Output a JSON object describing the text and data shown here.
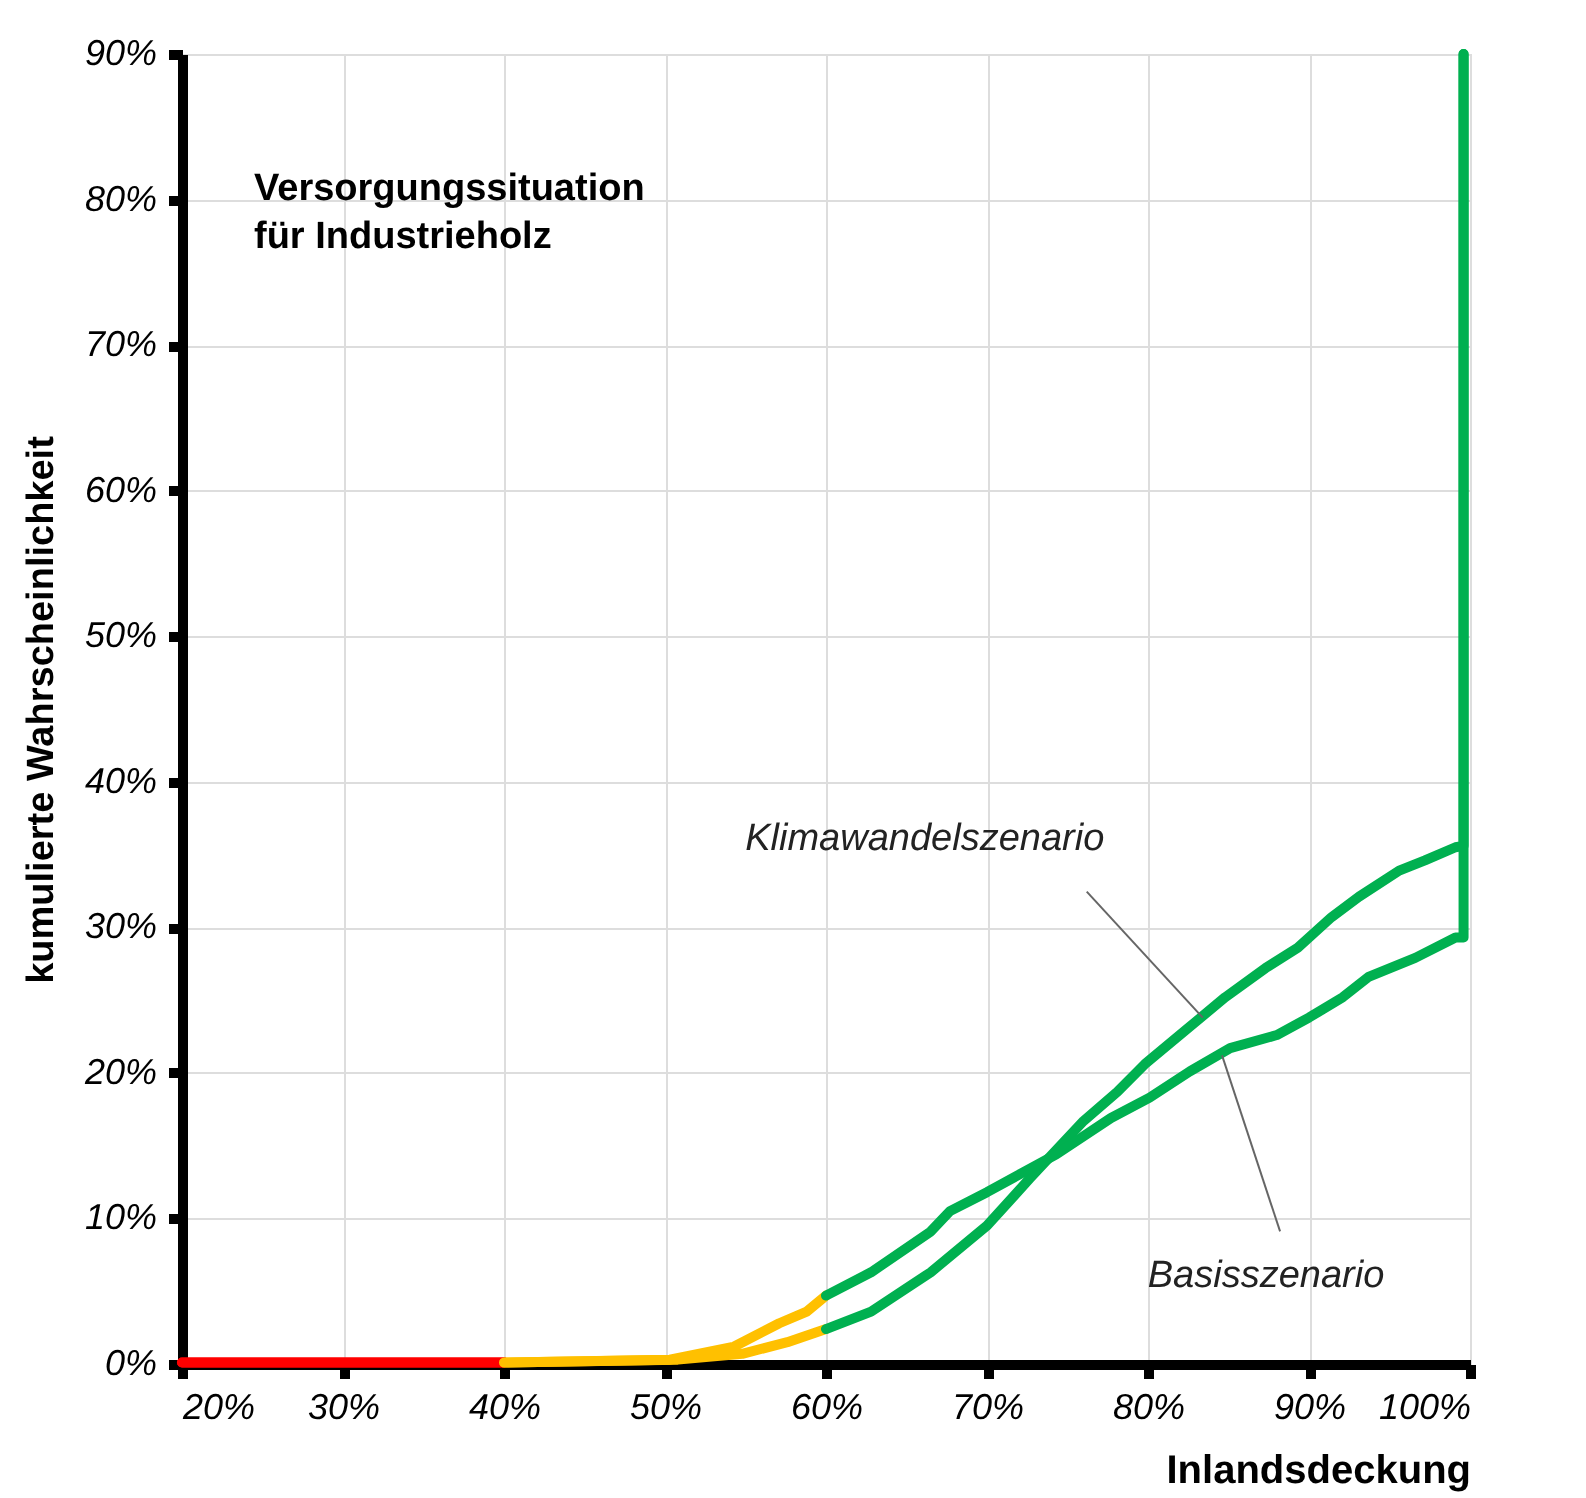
{
  "chart_data": {
    "type": "line",
    "title": "Versorgungssituation\nfür Industrieholz",
    "xlabel": "Inlandsdeckung",
    "ylabel": "kumulierte Wahrscheinlichkeit",
    "xlim": [
      20,
      100
    ],
    "ylim": [
      0,
      90
    ],
    "xticks": [
      {
        "value": 20,
        "label": "20%"
      },
      {
        "value": 30,
        "label": "30%"
      },
      {
        "value": 40,
        "label": "40%"
      },
      {
        "value": 50,
        "label": "50%"
      },
      {
        "value": 60,
        "label": "60%"
      },
      {
        "value": 70,
        "label": "70%"
      },
      {
        "value": 80,
        "label": "80%"
      },
      {
        "value": 90,
        "label": "90%"
      },
      {
        "value": 100,
        "label": "100%"
      }
    ],
    "yticks": [
      {
        "value": 0,
        "label": "0%"
      },
      {
        "value": 10,
        "label": "10%"
      },
      {
        "value": 20,
        "label": "20%"
      },
      {
        "value": 30,
        "label": "30%"
      },
      {
        "value": 40,
        "label": "40%"
      },
      {
        "value": 50,
        "label": "50%"
      },
      {
        "value": 60,
        "label": "60%"
      },
      {
        "value": 70,
        "label": "70%"
      },
      {
        "value": 80,
        "label": "80%"
      },
      {
        "value": 90,
        "label": "90%"
      }
    ],
    "grid": true,
    "legend": false,
    "marker": "none",
    "line_style": "solid",
    "series": [
      {
        "color": "#ff0000",
        "x": [
          20,
          30,
          40
        ],
        "values": [
          0.1,
          0.1,
          0.1
        ]
      },
      {
        "color": "#ffc000",
        "x": [
          40,
          50.8,
          54.8,
          57.6,
          60
        ],
        "values": [
          0.1,
          0.3,
          0.7,
          1.5,
          2.4
        ]
      },
      {
        "color": "#00b050",
        "x": [
          60,
          62.8,
          66.5,
          70,
          72.7,
          76,
          78.1,
          79.8,
          82.3,
          84.8,
          87.3,
          89.3,
          91.4,
          93.1,
          95.6,
          97.2,
          99.1,
          99.6,
          99.6
        ],
        "values": [
          2.4,
          3.6,
          6.3,
          9.5,
          12.8,
          16.7,
          18.7,
          20.6,
          22.9,
          25.2,
          27.2,
          28.6,
          30.7,
          32.1,
          33.9,
          34.6,
          35.5,
          35.6,
          90
        ]
      },
      {
        "color": "#ff0000",
        "x": [
          20,
          30,
          40
        ],
        "values": [
          0.1,
          0.1,
          0.1
        ]
      },
      {
        "color": "#ffc000",
        "x": [
          40,
          50.3,
          54.3,
          57.1,
          58.8,
          60
        ],
        "values": [
          0.1,
          0.3,
          1.2,
          2.8,
          3.6,
          4.7
        ]
      },
      {
        "color": "#00b050",
        "x": [
          60,
          62.8,
          66.5,
          67.7,
          70,
          72.3,
          74.3,
          77.7,
          80.1,
          82.6,
          85.1,
          88,
          90,
          92.1,
          93.7,
          96.6,
          99.1,
          99.6,
          99.6
        ],
        "values": [
          4.7,
          6.3,
          9.1,
          10.5,
          11.8,
          13.2,
          14.4,
          16.9,
          18.3,
          20.1,
          21.7,
          22.6,
          23.8,
          25.2,
          26.6,
          27.9,
          29.3,
          29.3,
          90
        ]
      }
    ],
    "annotations": [
      {
        "text": "Klimawandelszenario",
        "x": 83.4,
        "y": 23.8
      },
      {
        "text": "Basisszenario",
        "x": 84.6,
        "y": 21.2
      }
    ]
  }
}
